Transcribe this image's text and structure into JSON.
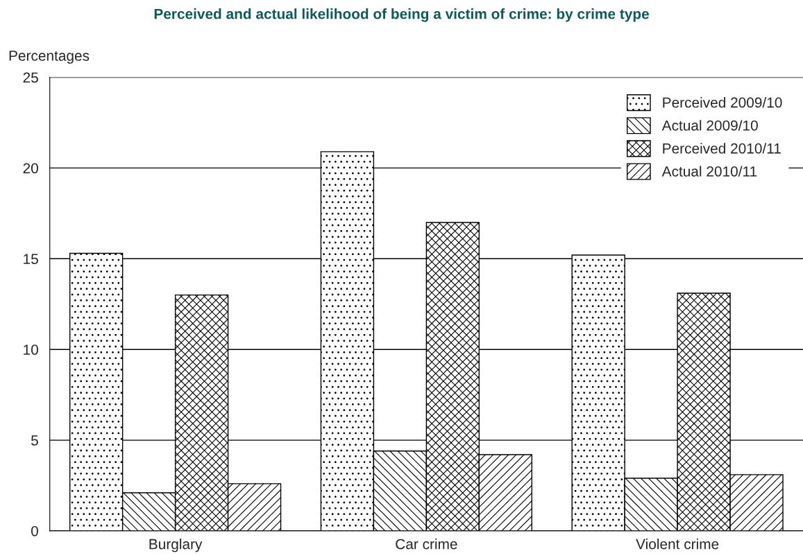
{
  "chart_data": {
    "type": "bar",
    "title": "Perceived and actual likelihood of being a victim of crime: by crime type",
    "ylabel": "Percentages",
    "categories": [
      "Burglary",
      "Car crime",
      "Violent crime"
    ],
    "series": [
      {
        "name": "Perceived 2009/10",
        "color": "#000000",
        "values": [
          15.3,
          20.9,
          15.2
        ]
      },
      {
        "name": "Actual 2009/10",
        "color": "#000000",
        "values": [
          2.1,
          4.4,
          2.9
        ]
      },
      {
        "name": "Perceived 2010/11",
        "color": "#000000",
        "values": [
          13.0,
          17.0,
          13.1
        ]
      },
      {
        "name": "Actual 2010/11",
        "color": "#000000",
        "values": [
          2.6,
          4.2,
          3.1
        ]
      }
    ],
    "ylim": [
      0,
      25
    ],
    "yticks": [
      0,
      5,
      10,
      15,
      20,
      25
    ],
    "grid": "y",
    "legend": "top right"
  }
}
